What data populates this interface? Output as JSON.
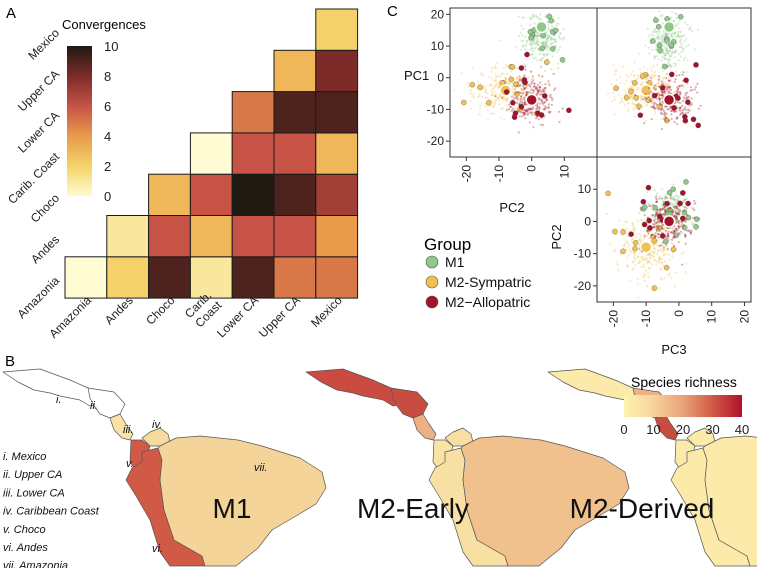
{
  "panels": {
    "a_letter": "A",
    "b_letter": "B",
    "c_letter": "C"
  },
  "chart_data": [
    {
      "type": "heatmap",
      "title": "Convergences",
      "regions": [
        "Amazonia",
        "Andes",
        "Choco",
        "Carib. Coast",
        "Lower CA",
        "Upper CA",
        "Mexico"
      ],
      "x_tick_labels": [
        "Amazonia",
        "Andes",
        "Choco",
        "Carib.\nCoast",
        "Lower CA",
        "Upper CA",
        "Mexico"
      ],
      "y_tick_labels": [
        "Amazonia",
        "Andes",
        "Choco",
        "Carib. Coast",
        "Lower CA",
        "Upper CA",
        "Mexico"
      ],
      "matrix": [
        [
          0,
          2,
          9,
          1,
          9,
          5,
          5
        ],
        [
          null,
          1,
          6,
          3,
          6,
          6,
          4
        ],
        [
          null,
          null,
          3,
          6,
          10,
          9,
          7
        ],
        [
          null,
          null,
          null,
          0,
          6,
          6,
          3
        ],
        [
          null,
          null,
          null,
          null,
          5,
          9,
          9
        ],
        [
          null,
          null,
          null,
          null,
          null,
          3,
          8
        ],
        [
          null,
          null,
          null,
          null,
          null,
          null,
          2
        ]
      ],
      "colorbar": {
        "min": 0,
        "max": 10,
        "ticks": [
          0,
          2,
          4,
          6,
          8,
          10
        ]
      }
    },
    {
      "type": "map",
      "title": "Species richness",
      "maps": [
        {
          "name": "M1",
          "region_values": {
            "Mexico": 0,
            "Upper CA": 0,
            "Lower CA": 5,
            "Carib. Coast": 8,
            "Choco": 30,
            "Andes": 30,
            "Amazonia": 10
          }
        },
        {
          "name": "M2-Early",
          "region_values": {
            "Mexico": 32,
            "Upper CA": 32,
            "Lower CA": 17,
            "Carib. Coast": 6,
            "Choco": 5,
            "Andes": 6,
            "Amazonia": 14
          }
        },
        {
          "name": "M2-Derived",
          "region_values": {
            "Mexico": 3,
            "Upper CA": 17,
            "Lower CA": 32,
            "Carib. Coast": 3,
            "Choco": 3,
            "Andes": 3,
            "Amazonia": 3
          }
        }
      ],
      "colorbar": {
        "min": 0,
        "max": 40,
        "ticks": [
          0,
          10,
          20,
          30,
          40
        ]
      },
      "region_key": [
        {
          "numeral": "i.",
          "label": "i. Mexico"
        },
        {
          "numeral": "ii.",
          "label": "ii. Upper CA"
        },
        {
          "numeral": "iii.",
          "label": "iii. Lower CA"
        },
        {
          "numeral": "iv.",
          "label": "iv. Caribbean Coast"
        },
        {
          "numeral": "v.",
          "label": "v. Choco"
        },
        {
          "numeral": "vi.",
          "label": "vi. Andes"
        },
        {
          "numeral": "vii.",
          "label": "vii. Amazonia"
        }
      ]
    },
    {
      "type": "scatter",
      "title": "",
      "legend_title": "Group",
      "groups": [
        {
          "name": "M1",
          "color": "#8fc98a",
          "centroid": {
            "PC1": 16,
            "PC2": 3,
            "PC3": -3
          }
        },
        {
          "name": "M2-Sympatric",
          "color": "#f0c150",
          "centroid": {
            "PC1": -4,
            "PC2": -8,
            "PC3": -10
          }
        },
        {
          "name": "M2−Allopatric",
          "color": "#a3142a",
          "centroid": {
            "PC1": -7,
            "PC2": 0,
            "PC3": -3
          }
        }
      ],
      "subplots": [
        {
          "name": "PC1 vs PC2",
          "xlabel": "PC2",
          "ylabel": "PC1",
          "xlim": [
            -25,
            20
          ],
          "ylim": [
            -25,
            22
          ],
          "xticks": [
            -20,
            -10,
            0,
            10
          ],
          "yticks": [
            -20,
            -10,
            0,
            10,
            20
          ]
        },
        {
          "name": "PC1 vs PC3",
          "xlabel": "",
          "ylabel": "",
          "xlim": [
            -25,
            22
          ],
          "ylim": [
            -25,
            22
          ]
        },
        {
          "name": "PC2 vs PC3",
          "xlabel": "PC3",
          "ylabel": "PC2",
          "xlim": [
            -25,
            22
          ],
          "ylim": [
            -25,
            20
          ],
          "xticks": [
            -20,
            -10,
            0,
            10,
            20
          ],
          "yticks": [
            -20,
            -10,
            0,
            10
          ]
        }
      ]
    }
  ]
}
